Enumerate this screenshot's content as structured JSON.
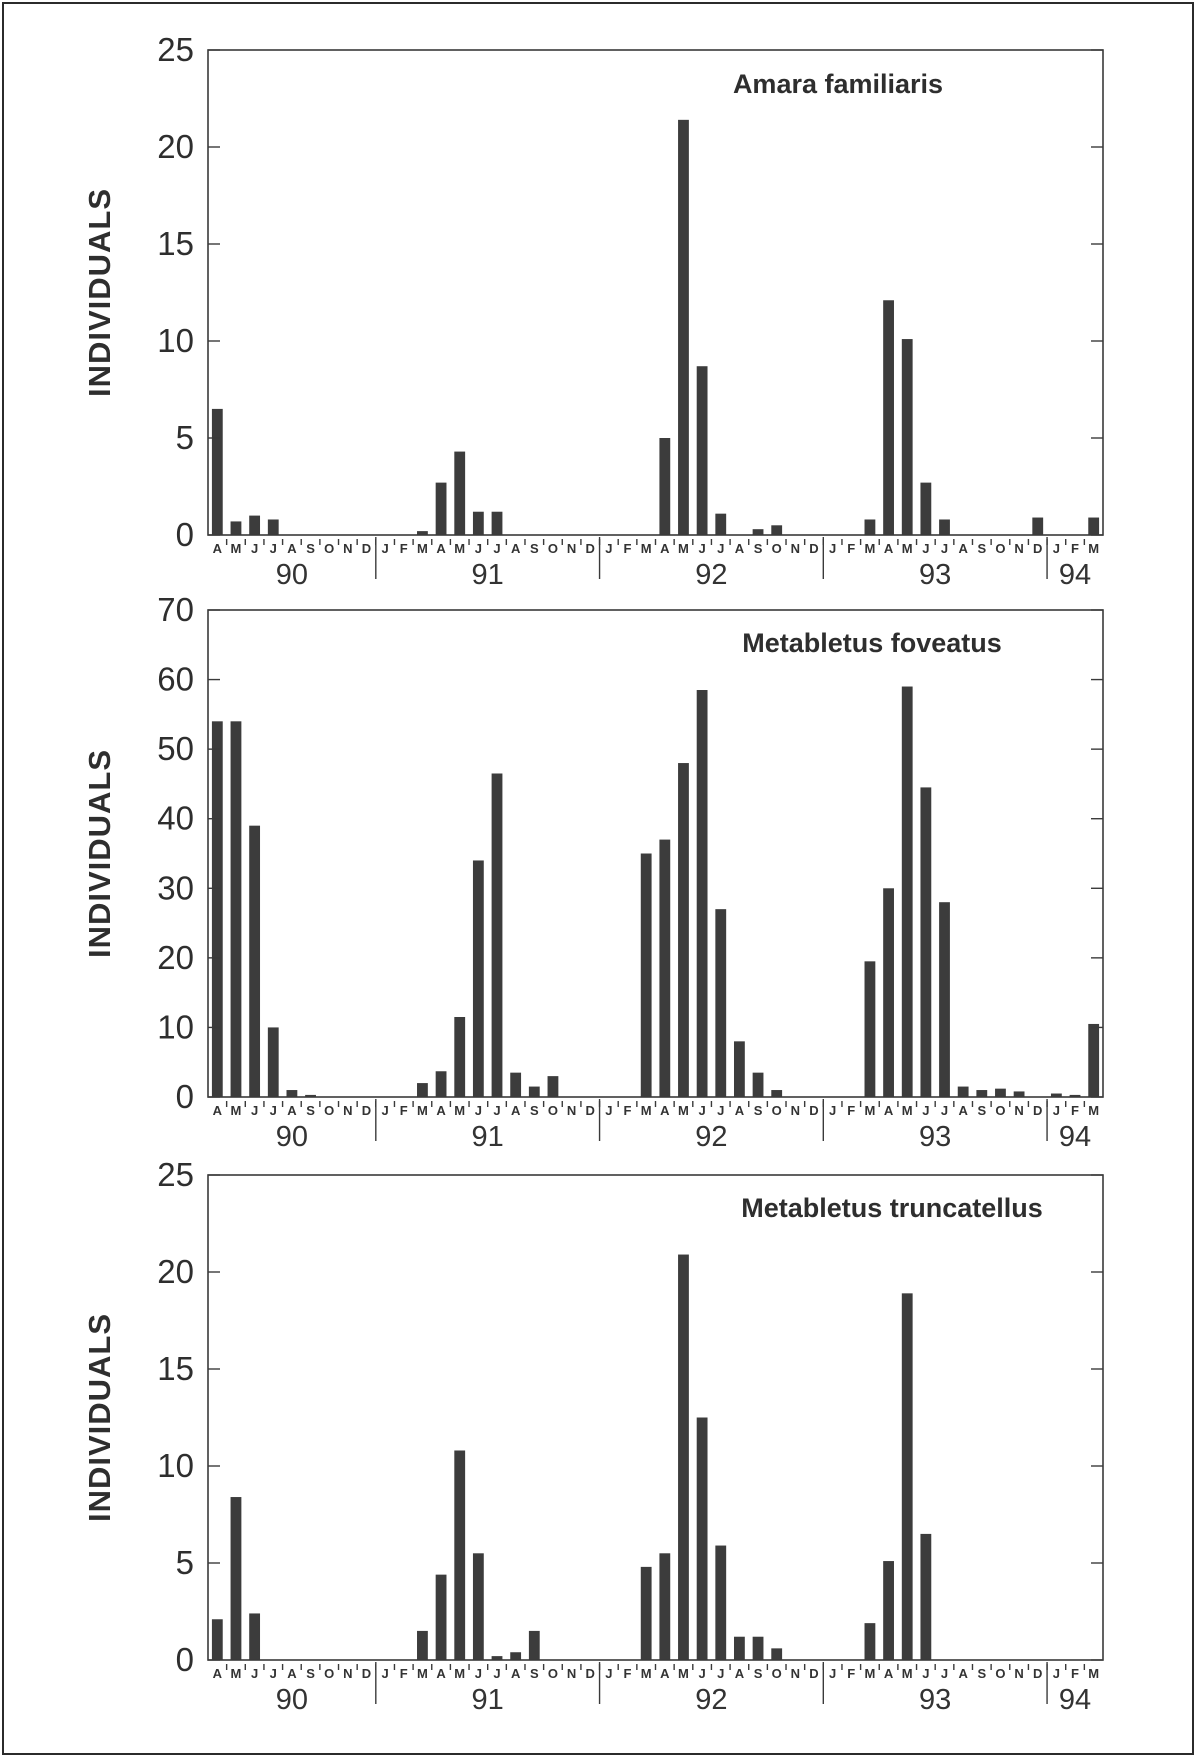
{
  "chart_data": [
    {
      "type": "bar",
      "title": "Amara familiaris",
      "ylabel": "INDIVIDUALS",
      "xlabel": "",
      "ylim": [
        0,
        25
      ],
      "yticks": [
        0,
        5,
        10,
        15,
        20,
        25
      ],
      "categories": [
        "A",
        "M",
        "J",
        "J",
        "A",
        "S",
        "O",
        "N",
        "D",
        "J",
        "F",
        "M",
        "A",
        "M",
        "J",
        "J",
        "A",
        "S",
        "O",
        "N",
        "D",
        "J",
        "F",
        "M",
        "A",
        "M",
        "J",
        "J",
        "A",
        "S",
        "O",
        "N",
        "D",
        "J",
        "F",
        "M",
        "A",
        "M",
        "J",
        "J",
        "A",
        "S",
        "O",
        "N",
        "D",
        "J",
        "F",
        "M"
      ],
      "years": [
        {
          "label": "90",
          "start": 0,
          "end": 9
        },
        {
          "label": "91",
          "start": 9,
          "end": 21
        },
        {
          "label": "92",
          "start": 21,
          "end": 33
        },
        {
          "label": "93",
          "start": 33,
          "end": 45
        },
        {
          "label": "94",
          "start": 45,
          "end": 48
        }
      ],
      "values": [
        6.5,
        0.7,
        1.0,
        0.8,
        0,
        0,
        0,
        0,
        0,
        0,
        0,
        0.2,
        2.7,
        4.3,
        1.2,
        1.2,
        0,
        0,
        0,
        0,
        0,
        0,
        0,
        0,
        5.0,
        21.4,
        8.7,
        1.1,
        0,
        0.3,
        0.5,
        0,
        0,
        0,
        0,
        0.8,
        12.1,
        10.1,
        2.7,
        0.8,
        0,
        0,
        0,
        0,
        0.9,
        0,
        0,
        0.9
      ]
    },
    {
      "type": "bar",
      "title": "Metabletus foveatus",
      "ylabel": "INDIVIDUALS",
      "xlabel": "",
      "ylim": [
        0,
        70
      ],
      "yticks": [
        0,
        10,
        20,
        30,
        40,
        50,
        60,
        70
      ],
      "categories": [
        "A",
        "M",
        "J",
        "J",
        "A",
        "S",
        "O",
        "N",
        "D",
        "J",
        "F",
        "M",
        "A",
        "M",
        "J",
        "J",
        "A",
        "S",
        "O",
        "N",
        "D",
        "J",
        "F",
        "M",
        "A",
        "M",
        "J",
        "J",
        "A",
        "S",
        "O",
        "N",
        "D",
        "J",
        "F",
        "M",
        "A",
        "M",
        "J",
        "J",
        "A",
        "S",
        "O",
        "N",
        "D",
        "J",
        "F",
        "M"
      ],
      "years": [
        {
          "label": "90",
          "start": 0,
          "end": 9
        },
        {
          "label": "91",
          "start": 9,
          "end": 21
        },
        {
          "label": "92",
          "start": 21,
          "end": 33
        },
        {
          "label": "93",
          "start": 33,
          "end": 45
        },
        {
          "label": "94",
          "start": 45,
          "end": 48
        }
      ],
      "values": [
        54,
        54,
        39,
        10,
        1,
        0.3,
        0,
        0,
        0,
        0,
        0,
        2,
        3.7,
        11.5,
        34,
        46.5,
        3.5,
        1.5,
        3,
        0,
        0,
        0,
        0,
        35,
        37,
        48,
        58.5,
        27,
        8,
        3.5,
        1,
        0,
        0,
        0,
        0,
        19.5,
        30,
        59,
        44.5,
        28,
        1.5,
        1,
        1.2,
        0.8,
        0,
        0.5,
        0.3,
        10.5
      ]
    },
    {
      "type": "bar",
      "title": "Metabletus truncatellus",
      "ylabel": "INDIVIDUALS",
      "xlabel": "",
      "ylim": [
        0,
        25
      ],
      "yticks": [
        0,
        5,
        10,
        15,
        20,
        25
      ],
      "categories": [
        "A",
        "M",
        "J",
        "J",
        "A",
        "S",
        "O",
        "N",
        "D",
        "J",
        "F",
        "M",
        "A",
        "M",
        "J",
        "J",
        "A",
        "S",
        "O",
        "N",
        "D",
        "J",
        "F",
        "M",
        "A",
        "M",
        "J",
        "J",
        "A",
        "S",
        "O",
        "N",
        "D",
        "J",
        "F",
        "M",
        "A",
        "M",
        "J",
        "J",
        "A",
        "S",
        "O",
        "N",
        "D",
        "J",
        "F",
        "M"
      ],
      "years": [
        {
          "label": "90",
          "start": 0,
          "end": 9
        },
        {
          "label": "91",
          "start": 9,
          "end": 21
        },
        {
          "label": "92",
          "start": 21,
          "end": 33
        },
        {
          "label": "93",
          "start": 33,
          "end": 45
        },
        {
          "label": "94",
          "start": 45,
          "end": 48
        }
      ],
      "values": [
        2.1,
        8.4,
        2.4,
        0,
        0,
        0,
        0,
        0,
        0,
        0,
        0,
        1.5,
        4.4,
        10.8,
        5.5,
        0.2,
        0.4,
        1.5,
        0,
        0,
        0,
        0,
        0,
        4.8,
        5.5,
        20.9,
        12.5,
        5.9,
        1.2,
        1.2,
        0.6,
        0,
        0,
        0,
        0,
        1.9,
        5.1,
        18.9,
        6.5,
        0,
        0,
        0,
        0,
        0,
        0,
        0,
        0,
        0
      ]
    }
  ]
}
